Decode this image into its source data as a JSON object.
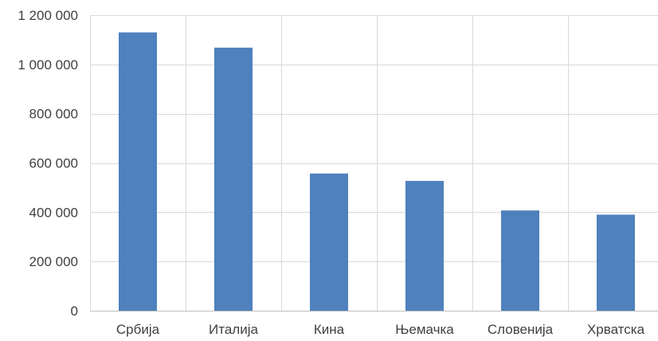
{
  "chart_data": {
    "type": "bar",
    "categories": [
      "Србија",
      "Италија",
      "Кина",
      "Њемачка",
      "Словенија",
      "Хрватска"
    ],
    "values": [
      1130000,
      1068000,
      557000,
      527000,
      407000,
      390000
    ],
    "ylim": [
      0,
      1200000
    ],
    "yticks": [
      0,
      200000,
      400000,
      600000,
      800000,
      1000000,
      1200000
    ],
    "ytick_labels": [
      "0",
      "200 000",
      "400 000",
      "600 000",
      "800 000",
      "1 000 000",
      "1 200 000"
    ],
    "grid": true,
    "colors": {
      "bar": "#4f81bd",
      "grid": "#d9d9d9",
      "text": "#404040"
    }
  }
}
